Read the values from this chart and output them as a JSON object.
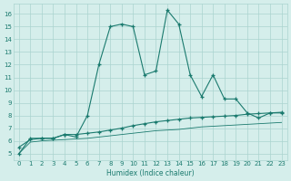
{
  "xlabel": "Humidex (Indice chaleur)",
  "x": [
    0,
    1,
    2,
    3,
    4,
    5,
    6,
    7,
    8,
    9,
    10,
    11,
    12,
    13,
    14,
    15,
    16,
    17,
    18,
    19,
    20,
    21,
    22,
    23
  ],
  "line1": [
    5.0,
    6.2,
    6.2,
    6.2,
    6.5,
    6.3,
    8.0,
    12.0,
    15.0,
    15.2,
    15.0,
    11.2,
    11.5,
    16.3,
    15.2,
    11.2,
    9.5,
    11.2,
    9.3,
    9.3,
    8.2,
    7.8,
    8.2,
    8.2
  ],
  "line2": [
    5.5,
    6.1,
    6.2,
    6.2,
    6.5,
    6.5,
    6.6,
    6.7,
    6.85,
    7.0,
    7.2,
    7.35,
    7.5,
    7.6,
    7.7,
    7.8,
    7.85,
    7.9,
    7.95,
    8.0,
    8.1,
    8.15,
    8.2,
    8.25
  ],
  "line3": [
    5.0,
    5.9,
    6.0,
    6.05,
    6.1,
    6.15,
    6.2,
    6.3,
    6.4,
    6.5,
    6.6,
    6.7,
    6.8,
    6.85,
    6.9,
    7.0,
    7.1,
    7.15,
    7.2,
    7.25,
    7.3,
    7.35,
    7.4,
    7.45
  ],
  "line_color": "#1a7a6e",
  "bg_color": "#d5eeeb",
  "grid_color": "#aad4cf",
  "ylim": [
    4.5,
    16.8
  ],
  "xlim": [
    -0.5,
    23.5
  ],
  "yticks": [
    5,
    6,
    7,
    8,
    9,
    10,
    11,
    12,
    13,
    14,
    15,
    16
  ],
  "xticks": [
    0,
    1,
    2,
    3,
    4,
    5,
    6,
    7,
    8,
    9,
    10,
    11,
    12,
    13,
    14,
    15,
    16,
    17,
    18,
    19,
    20,
    21,
    22,
    23
  ]
}
